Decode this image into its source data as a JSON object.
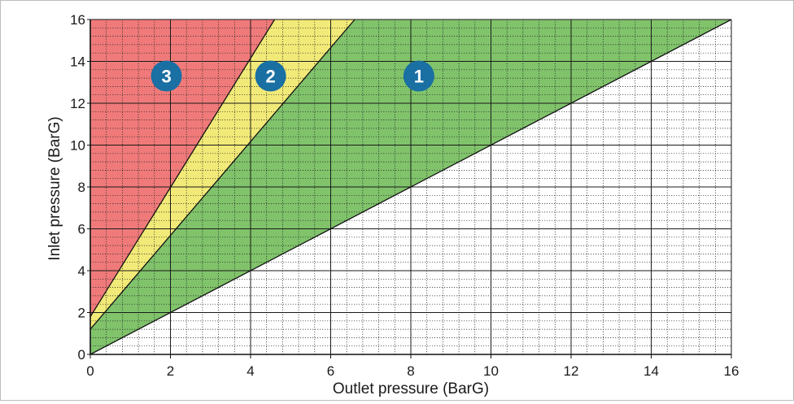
{
  "chart_data": {
    "type": "area",
    "xlabel": "Outlet pressure (BarG)",
    "ylabel": "Inlet pressure (BarG)",
    "xlim": [
      0,
      16
    ],
    "ylim": [
      0,
      16
    ],
    "x_ticks": [
      "0",
      "2",
      "4",
      "6",
      "8",
      "10",
      "12",
      "14",
      "16"
    ],
    "y_ticks": [
      "0",
      "2",
      "4",
      "6",
      "8",
      "10",
      "12",
      "14",
      "16"
    ],
    "major_grid_step": 2,
    "minor_grid_step": 0.4,
    "grid": true,
    "regions": [
      {
        "label": "1",
        "color": "#80c36b",
        "lower_boundary": [
          [
            0,
            0
          ],
          [
            16,
            16
          ]
        ],
        "upper_boundary": [
          [
            0,
            1.2
          ],
          [
            6.6,
            16
          ]
        ]
      },
      {
        "label": "2",
        "color": "#f2ea78",
        "lower_boundary": [
          [
            0,
            1.2
          ],
          [
            6.6,
            16
          ]
        ],
        "upper_boundary": [
          [
            0,
            1.8
          ],
          [
            4.6,
            16
          ]
        ]
      },
      {
        "label": "3",
        "color": "#f07a7a",
        "lower_boundary": [
          [
            0,
            1.8
          ],
          [
            4.6,
            16
          ]
        ],
        "upper_boundary": [
          [
            0,
            16
          ],
          [
            4.6,
            16
          ]
        ]
      }
    ],
    "badges": [
      {
        "label": "3",
        "x": 1.9,
        "y": 13.3
      },
      {
        "label": "2",
        "x": 4.5,
        "y": 13.3
      },
      {
        "label": "1",
        "x": 8.2,
        "y": 13.3
      }
    ],
    "badge_color": "#1a6fa3"
  }
}
